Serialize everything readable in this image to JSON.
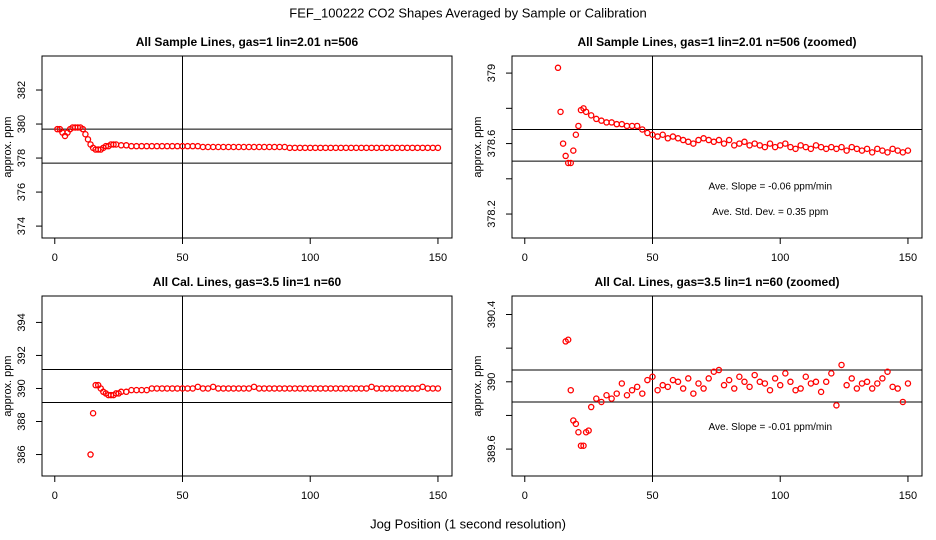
{
  "figure": {
    "title": "FEF_100222  CO2 Shapes Averaged by Sample or Calibration",
    "xlabel": "Jog Position (1 second resolution)"
  },
  "chart_data": [
    {
      "type": "scatter",
      "title": "All Sample Lines, gas=1 lin=2.01 n=506",
      "ylabel": "approx. ppm",
      "color": "#ff0000",
      "xlim": [
        -5,
        155.5
      ],
      "ylim": [
        373.3,
        384.0
      ],
      "xticks": [
        0,
        50,
        100,
        150
      ],
      "yticks": [
        374,
        376,
        378,
        380,
        382
      ],
      "vlines": [
        50
      ],
      "hlines": [
        379.7,
        377.7
      ],
      "x": [
        1,
        2,
        3,
        4,
        5,
        6,
        7,
        8,
        9,
        10,
        11,
        12,
        13,
        14,
        15,
        16,
        17,
        18,
        19,
        20,
        21,
        22,
        23,
        24,
        26,
        28,
        30,
        32,
        34,
        36,
        38,
        40,
        42,
        44,
        46,
        48,
        50,
        52,
        54,
        56,
        58,
        60,
        62,
        64,
        66,
        68,
        70,
        72,
        74,
        76,
        78,
        80,
        82,
        84,
        86,
        88,
        90,
        92,
        94,
        96,
        98,
        100,
        102,
        104,
        106,
        108,
        110,
        112,
        114,
        116,
        118,
        120,
        122,
        124,
        126,
        128,
        130,
        132,
        134,
        136,
        138,
        140,
        142,
        144,
        146,
        148,
        150
      ],
      "values": [
        379.7,
        379.7,
        379.5,
        379.3,
        379.5,
        379.7,
        379.8,
        379.8,
        379.8,
        379.8,
        379.7,
        379.4,
        379.1,
        378.8,
        378.6,
        378.5,
        378.5,
        378.5,
        378.6,
        378.7,
        378.7,
        378.8,
        378.8,
        378.8,
        378.75,
        378.75,
        378.7,
        378.7,
        378.7,
        378.7,
        378.7,
        378.7,
        378.7,
        378.7,
        378.7,
        378.7,
        378.7,
        378.7,
        378.7,
        378.7,
        378.65,
        378.65,
        378.65,
        378.65,
        378.65,
        378.65,
        378.65,
        378.65,
        378.65,
        378.65,
        378.65,
        378.65,
        378.65,
        378.65,
        378.65,
        378.65,
        378.65,
        378.6,
        378.6,
        378.6,
        378.6,
        378.6,
        378.6,
        378.6,
        378.6,
        378.6,
        378.6,
        378.6,
        378.6,
        378.6,
        378.6,
        378.6,
        378.6,
        378.6,
        378.6,
        378.6,
        378.6,
        378.6,
        378.6,
        378.6,
        378.6,
        378.6,
        378.6,
        378.6,
        378.6,
        378.6,
        378.6
      ]
    },
    {
      "type": "scatter",
      "title": "All Sample Lines, gas=1 lin=2.01 n=506 (zoomed)",
      "ylabel": "approx. ppm",
      "color": "#ff0000",
      "xlim": [
        -5,
        155.5
      ],
      "ylim": [
        378.064,
        379.097
      ],
      "xticks": [
        0,
        50,
        100,
        150
      ],
      "yticks": [
        378.2,
        378.6,
        379.0
      ],
      "yminorticks": [
        378.4,
        378.8
      ],
      "vlines": [
        50
      ],
      "hlines": [
        378.68,
        378.5
      ],
      "annotations": [
        "Ave. Slope =  -0.06  ppm/min",
        "Ave. Std. Dev. =  0.35  ppm"
      ],
      "x": [
        13,
        14,
        15,
        16,
        17,
        18,
        19,
        20,
        21,
        22,
        23,
        24,
        26,
        28,
        30,
        32,
        34,
        36,
        38,
        40,
        42,
        44,
        46,
        48,
        50,
        52,
        54,
        56,
        58,
        60,
        62,
        64,
        66,
        68,
        70,
        72,
        74,
        76,
        78,
        80,
        82,
        84,
        86,
        88,
        90,
        92,
        94,
        96,
        98,
        100,
        102,
        104,
        106,
        108,
        110,
        112,
        114,
        116,
        118,
        120,
        122,
        124,
        126,
        128,
        130,
        132,
        134,
        136,
        138,
        140,
        142,
        144,
        146,
        148,
        150
      ],
      "values": [
        379.03,
        378.78,
        378.6,
        378.53,
        378.49,
        378.49,
        378.56,
        378.65,
        378.7,
        378.79,
        378.8,
        378.78,
        378.76,
        378.74,
        378.73,
        378.72,
        378.72,
        378.71,
        378.71,
        378.7,
        378.7,
        378.7,
        378.68,
        378.66,
        378.65,
        378.64,
        378.65,
        378.63,
        378.64,
        378.63,
        378.62,
        378.61,
        378.6,
        378.62,
        378.63,
        378.62,
        378.61,
        378.62,
        378.6,
        378.62,
        378.59,
        378.6,
        378.61,
        378.59,
        378.6,
        378.59,
        378.58,
        378.6,
        378.58,
        378.59,
        378.6,
        378.58,
        378.57,
        378.59,
        378.58,
        378.57,
        378.59,
        378.58,
        378.57,
        378.58,
        378.57,
        378.58,
        378.56,
        378.58,
        378.57,
        378.56,
        378.57,
        378.55,
        378.57,
        378.56,
        378.55,
        378.57,
        378.56,
        378.55,
        378.56
      ]
    },
    {
      "type": "scatter",
      "title": "All Cal. Lines, gas=3.5 lin=1 n=60",
      "ylabel": "approx. ppm",
      "color": "#ff0000",
      "xlim": [
        -5,
        155.5
      ],
      "ylim": [
        384.7,
        395.6
      ],
      "xticks": [
        0,
        50,
        100,
        150
      ],
      "yticks": [
        386,
        388,
        390,
        392,
        394
      ],
      "vlines": [
        50
      ],
      "hlines": [
        391.15,
        389.15
      ],
      "x": [
        14,
        15,
        16,
        17,
        18,
        19,
        20,
        21,
        22,
        23,
        24,
        25,
        26,
        28,
        30,
        32,
        34,
        36,
        38,
        40,
        42,
        44,
        46,
        48,
        50,
        52,
        54,
        56,
        58,
        60,
        62,
        64,
        66,
        68,
        70,
        72,
        74,
        76,
        78,
        80,
        82,
        84,
        86,
        88,
        90,
        92,
        94,
        96,
        98,
        100,
        102,
        104,
        106,
        108,
        110,
        112,
        114,
        116,
        118,
        120,
        122,
        124,
        126,
        128,
        130,
        132,
        134,
        136,
        138,
        140,
        142,
        144,
        146,
        148,
        150
      ],
      "values": [
        386.0,
        388.5,
        390.2,
        390.2,
        390.0,
        389.8,
        389.7,
        389.6,
        389.6,
        389.6,
        389.7,
        389.7,
        389.8,
        389.8,
        389.9,
        389.9,
        389.9,
        389.9,
        390.0,
        390.0,
        390.0,
        390.0,
        390.0,
        390.0,
        390.0,
        390.0,
        390.0,
        390.1,
        390.0,
        390.0,
        390.1,
        390.0,
        390.0,
        390.0,
        390.0,
        390.0,
        390.0,
        390.0,
        390.1,
        390.0,
        390.0,
        390.0,
        390.0,
        390.0,
        390.0,
        390.0,
        390.0,
        390.0,
        390.0,
        390.0,
        390.0,
        390.0,
        390.0,
        390.0,
        390.0,
        390.0,
        390.0,
        390.0,
        390.0,
        390.0,
        390.0,
        390.1,
        390.0,
        390.0,
        390.0,
        390.0,
        390.0,
        390.0,
        390.0,
        390.0,
        390.0,
        390.1,
        390.0,
        390.0,
        390.0
      ]
    },
    {
      "type": "scatter",
      "title": "All Cal. Lines, gas=3.5 lin=1 n=60 (zoomed)",
      "ylabel": "approx. ppm",
      "color": "#ff0000",
      "xlim": [
        -5,
        155.5
      ],
      "ylim": [
        389.44,
        390.51
      ],
      "xticks": [
        0,
        50,
        100,
        150
      ],
      "yticks": [
        389.6,
        390.0,
        390.4
      ],
      "yminorticks": [
        389.8,
        390.2
      ],
      "vlines": [
        50
      ],
      "hlines": [
        390.07,
        389.88
      ],
      "annotations": [
        "Ave. Slope =  -0.01  ppm/min"
      ],
      "x": [
        16,
        17,
        18,
        19,
        20,
        21,
        22,
        23,
        24,
        25,
        26,
        28,
        30,
        32,
        34,
        36,
        38,
        40,
        42,
        44,
        46,
        48,
        50,
        52,
        54,
        56,
        58,
        60,
        62,
        64,
        66,
        68,
        70,
        72,
        74,
        76,
        78,
        80,
        82,
        84,
        86,
        88,
        90,
        92,
        94,
        96,
        98,
        100,
        102,
        104,
        106,
        108,
        110,
        112,
        114,
        116,
        118,
        120,
        122,
        124,
        126,
        128,
        130,
        132,
        134,
        136,
        138,
        140,
        142,
        144,
        146,
        148,
        150
      ],
      "values": [
        390.24,
        390.25,
        389.95,
        389.77,
        389.75,
        389.7,
        389.62,
        389.62,
        389.7,
        389.71,
        389.85,
        389.9,
        389.88,
        389.92,
        389.9,
        389.93,
        389.99,
        389.92,
        389.95,
        389.97,
        389.93,
        390.01,
        390.03,
        389.95,
        389.98,
        389.97,
        390.01,
        390.0,
        389.96,
        390.02,
        389.93,
        389.99,
        389.96,
        390.02,
        390.06,
        390.07,
        389.98,
        390.01,
        389.96,
        390.03,
        390.0,
        389.97,
        390.04,
        390.0,
        389.99,
        389.95,
        390.02,
        389.98,
        390.05,
        390.0,
        389.95,
        389.96,
        390.03,
        389.99,
        390.0,
        389.94,
        390.0,
        390.05,
        389.86,
        390.1,
        389.98,
        390.02,
        389.96,
        389.99,
        390.0,
        389.96,
        389.99,
        390.02,
        390.06,
        389.97,
        389.96,
        389.88,
        389.99
      ]
    }
  ]
}
